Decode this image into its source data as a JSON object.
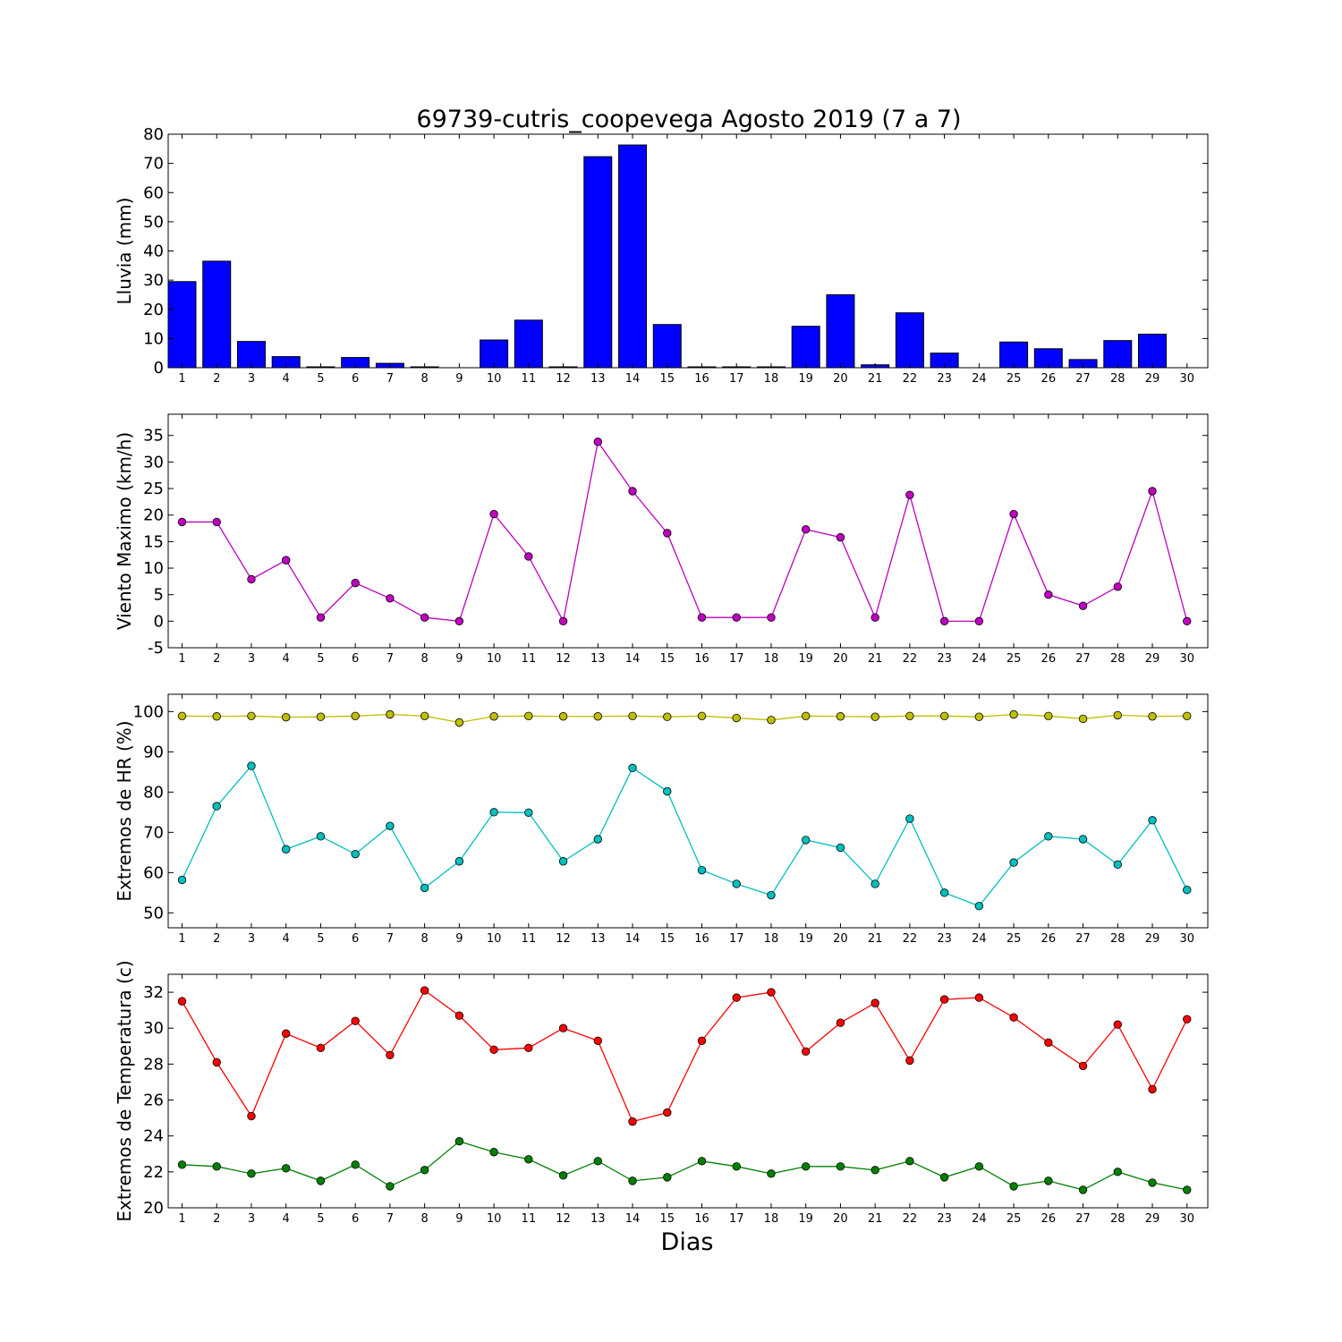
{
  "title": "69739-cutris_coopevega Agosto 2019  (7 a 7)",
  "xlabel": "Dias",
  "chart_data": [
    {
      "type": "bar",
      "ylabel": "Lluvia (mm)",
      "ylim": [
        0,
        80
      ],
      "yticks": [
        0,
        10,
        20,
        30,
        40,
        50,
        60,
        70,
        80
      ],
      "x": [
        1,
        2,
        3,
        4,
        5,
        6,
        7,
        8,
        9,
        10,
        11,
        12,
        13,
        14,
        15,
        16,
        17,
        18,
        19,
        20,
        21,
        22,
        23,
        24,
        25,
        26,
        27,
        28,
        29,
        30
      ],
      "series": [
        {
          "color": "#0000ff",
          "values": [
            29.5,
            36.5,
            9.0,
            3.8,
            0.3,
            3.5,
            1.5,
            0.3,
            0.0,
            9.5,
            16.3,
            0.3,
            72.3,
            76.3,
            14.8,
            0.3,
            0.3,
            0.3,
            14.2,
            25.0,
            1.0,
            18.8,
            5.0,
            0.0,
            8.8,
            6.5,
            2.8,
            9.3,
            11.5,
            0.0
          ]
        }
      ],
      "grid": false
    },
    {
      "type": "line",
      "ylabel": "Viento Maximo (km/h)",
      "ylim": [
        -5,
        39
      ],
      "yticks": [
        -5,
        0,
        5,
        10,
        15,
        20,
        25,
        30,
        35
      ],
      "x": [
        1,
        2,
        3,
        4,
        5,
        6,
        7,
        8,
        9,
        10,
        11,
        12,
        13,
        14,
        15,
        16,
        17,
        18,
        19,
        20,
        21,
        22,
        23,
        24,
        25,
        26,
        27,
        28,
        29,
        30
      ],
      "series": [
        {
          "color": "#bf00bf",
          "values": [
            18.7,
            18.7,
            7.9,
            11.5,
            0.7,
            7.2,
            4.3,
            0.7,
            0.0,
            20.2,
            12.2,
            0.0,
            33.8,
            24.5,
            16.6,
            0.7,
            0.7,
            0.7,
            17.3,
            15.8,
            0.7,
            23.8,
            0.0,
            0.0,
            20.2,
            5.0,
            2.9,
            6.5,
            24.5,
            0.0
          ]
        }
      ],
      "grid": false
    },
    {
      "type": "line",
      "ylabel": "Extremos de HR (%)",
      "ylim": [
        46.3,
        104.3
      ],
      "yticks": [
        50,
        60,
        70,
        80,
        90,
        100
      ],
      "x": [
        1,
        2,
        3,
        4,
        5,
        6,
        7,
        8,
        9,
        10,
        11,
        12,
        13,
        14,
        15,
        16,
        17,
        18,
        19,
        20,
        21,
        22,
        23,
        24,
        25,
        26,
        27,
        28,
        29,
        30
      ],
      "series": [
        {
          "color": "#bfbf00",
          "values": [
            98.9,
            98.8,
            98.9,
            98.6,
            98.7,
            98.9,
            99.3,
            98.9,
            97.3,
            98.8,
            98.9,
            98.8,
            98.8,
            98.9,
            98.7,
            98.9,
            98.4,
            97.9,
            98.9,
            98.8,
            98.7,
            98.9,
            98.9,
            98.7,
            99.3,
            98.9,
            98.2,
            99.1,
            98.8,
            98.9
          ]
        },
        {
          "color": "#00bfbf",
          "values": [
            58.2,
            76.5,
            86.5,
            65.8,
            69.0,
            64.6,
            71.6,
            56.2,
            62.8,
            75.0,
            74.9,
            62.8,
            68.3,
            86.0,
            80.2,
            60.6,
            57.2,
            54.4,
            68.1,
            66.2,
            57.2,
            73.4,
            55.0,
            51.7,
            62.5,
            69.0,
            68.3,
            62.0,
            73.0,
            55.7
          ]
        }
      ],
      "grid": false
    },
    {
      "type": "line",
      "ylabel": "Extremos de Temperatura (c)",
      "ylim": [
        20,
        33
      ],
      "yticks": [
        20,
        22,
        24,
        26,
        28,
        30,
        32
      ],
      "x": [
        1,
        2,
        3,
        4,
        5,
        6,
        7,
        8,
        9,
        10,
        11,
        12,
        13,
        14,
        15,
        16,
        17,
        18,
        19,
        20,
        21,
        22,
        23,
        24,
        25,
        26,
        27,
        28,
        29,
        30
      ],
      "series": [
        {
          "color": "#ff0000",
          "values": [
            31.5,
            28.1,
            25.1,
            29.7,
            28.9,
            30.4,
            28.5,
            32.1,
            30.7,
            28.8,
            28.9,
            30.0,
            29.3,
            24.8,
            25.3,
            29.3,
            31.7,
            32.0,
            28.7,
            30.3,
            31.4,
            28.2,
            31.6,
            31.7,
            30.6,
            29.2,
            27.9,
            30.2,
            26.6,
            30.5
          ]
        },
        {
          "color": "#008000",
          "values": [
            22.4,
            22.3,
            21.9,
            22.2,
            21.5,
            22.4,
            21.2,
            22.1,
            23.7,
            23.1,
            22.7,
            21.8,
            22.6,
            21.5,
            21.7,
            22.6,
            22.3,
            21.9,
            22.3,
            22.3,
            22.1,
            22.6,
            21.7,
            22.3,
            21.2,
            21.5,
            21.0,
            22.0,
            21.4,
            21.0
          ]
        }
      ],
      "grid": false
    }
  ]
}
